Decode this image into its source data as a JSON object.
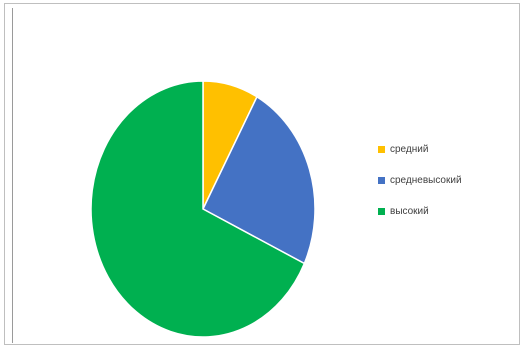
{
  "chart_data": {
    "type": "pie",
    "title": "",
    "categories": [
      "средний",
      "средневысокий",
      "высокий"
    ],
    "values": [
      8,
      24,
      68
    ],
    "colors": [
      "#FFC000",
      "#4472C4",
      "#00B050"
    ],
    "legend": "right"
  }
}
